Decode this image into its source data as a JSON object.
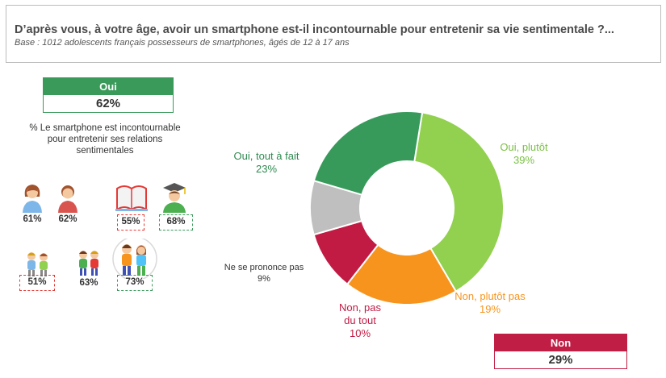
{
  "header": {
    "title": "D’après vous, à votre âge, avoir un smartphone est-il incontournable pour entretenir sa vie sentimentale ?...",
    "base": "Base : 1012 adolescents français possesseurs de smartphones, âgés de 12 à 17 ans"
  },
  "oui_box": {
    "label": "Oui",
    "value": "62%"
  },
  "non_box": {
    "label": "Non",
    "value": "29%"
  },
  "caption": "% Le smartphone est incontournable pour entretenir ses relations sentimentales",
  "segments": {
    "girl": "61%",
    "boy": "62%",
    "college": "55%",
    "lycee": "68%",
    "age_12_13": "51%",
    "age_14_15": "63%",
    "age_16_17": "73%"
  },
  "colors": {
    "oui_tout_a_fait": "#379a5b",
    "oui_plutot": "#92d050",
    "non_plutot_pas": "#f7941d",
    "non_pas_du_tout": "#c11b44",
    "nsp": "#bfbfbf"
  },
  "chart_data": {
    "type": "pie",
    "donut": true,
    "slices": [
      {
        "label": "Oui, plutôt",
        "value": 39,
        "display": "39%",
        "color": "#92d050"
      },
      {
        "label": "Non, plutôt pas",
        "value": 19,
        "display": "19%",
        "color": "#f7941d"
      },
      {
        "label": "Non, pas du tout",
        "value": 10,
        "display": "10%",
        "color": "#c11b44"
      },
      {
        "label": "Ne se prononce pas",
        "value": 9,
        "display": "9%",
        "color": "#bfbfbf"
      },
      {
        "label": "Oui, tout à fait",
        "value": 23,
        "display": "23%",
        "color": "#379a5b"
      }
    ]
  }
}
